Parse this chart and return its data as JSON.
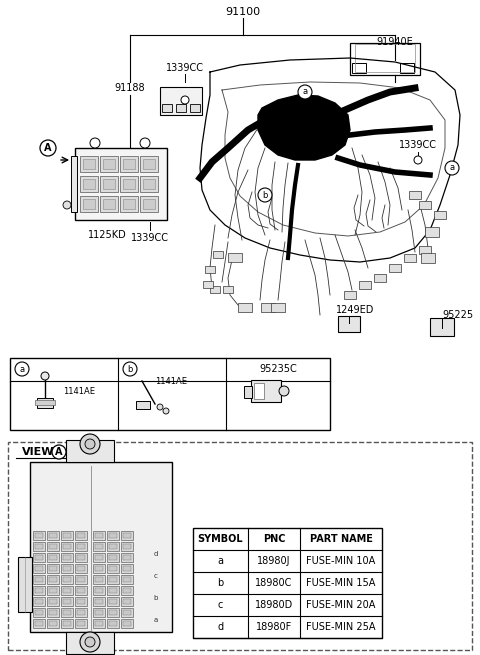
{
  "title": "91100",
  "bg_color": "#ffffff",
  "fig_width": 4.8,
  "fig_height": 6.55,
  "dpi": 100,
  "labels": {
    "main_title": "91100",
    "part1": "91188",
    "part2": "1125KD",
    "part3_top": "1339CC",
    "part3_left": "1339CC",
    "part3_right": "1339CC",
    "part4": "91940E",
    "part5": "1249ED",
    "part6": "95225",
    "sym_a": "a",
    "sym_b": "b",
    "pnc1": "1141AE",
    "pnc2": "1141AE",
    "pnc3": "95235C",
    "view_label": "VIEW",
    "view_sym": "A",
    "table_headers": [
      "SYMBOL",
      "PNC",
      "PART NAME"
    ],
    "table_rows": [
      [
        "a",
        "18980J",
        "FUSE-MIN 10A"
      ],
      [
        "b",
        "18980C",
        "FUSE-MIN 15A"
      ],
      [
        "c",
        "18980D",
        "FUSE-MIN 20A"
      ],
      [
        "d",
        "18980F",
        "FUSE-MIN 25A"
      ]
    ]
  },
  "colors": {
    "black": "#000000",
    "white": "#ffffff",
    "light_gray": "#e8e8e8",
    "mid_gray": "#aaaaaa",
    "border": "#333333",
    "dashed_border": "#666666"
  }
}
